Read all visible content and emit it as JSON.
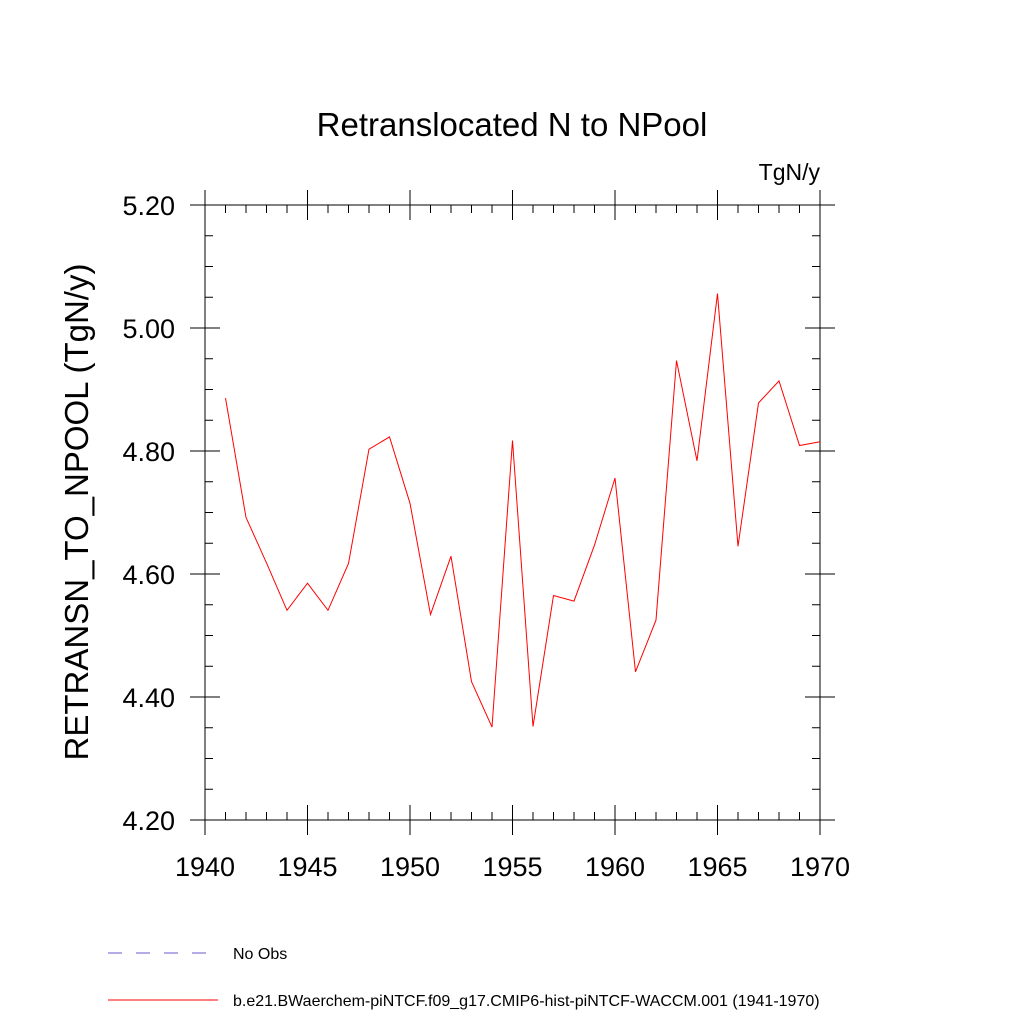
{
  "chart_data": {
    "type": "line",
    "title": "Retranslocated N to NPool",
    "units_label": "TgN/y",
    "ylabel": "RETRANSN_TO_NPOOL  (TgN/y)",
    "xlabel": "",
    "xlim": [
      1940,
      1970
    ],
    "ylim": [
      4.2,
      5.2
    ],
    "x_ticks": [
      "1940",
      "1945",
      "1950",
      "1955",
      "1960",
      "1965",
      "1970"
    ],
    "x_tick_values": [
      1940,
      1945,
      1950,
      1955,
      1960,
      1965,
      1970
    ],
    "y_ticks": [
      "4.20",
      "4.40",
      "4.60",
      "4.80",
      "5.00",
      "5.20"
    ],
    "y_tick_values": [
      4.2,
      4.4,
      4.6,
      4.8,
      5.0,
      5.2
    ],
    "x_minor_step": 1,
    "y_minor_step": 0.05,
    "grid": false,
    "legend_position": "bottom-left",
    "series": [
      {
        "name": "b.e21.BWaerchem-piNTCF.f09_g17.CMIP6-hist-piNTCF-WACCM.001 (1941-1970)",
        "color": "#ff0000",
        "dash": "solid",
        "x": [
          1941,
          1942,
          1943,
          1944,
          1945,
          1946,
          1947,
          1948,
          1949,
          1950,
          1951,
          1952,
          1953,
          1954,
          1955,
          1956,
          1957,
          1958,
          1959,
          1960,
          1961,
          1962,
          1963,
          1964,
          1965,
          1966,
          1967,
          1968,
          1969,
          1970
        ],
        "values": [
          4.886,
          4.692,
          4.618,
          4.541,
          4.585,
          4.541,
          4.617,
          4.803,
          4.823,
          4.715,
          4.534,
          4.629,
          4.425,
          4.351,
          4.817,
          4.352,
          4.565,
          4.556,
          4.647,
          4.756,
          4.441,
          4.525,
          4.947,
          4.784,
          5.056,
          4.645,
          4.878,
          4.914,
          4.809,
          4.815
        ]
      }
    ],
    "legend": [
      {
        "label": "No Obs",
        "color": "#6a5acd",
        "dash": "dashed"
      },
      {
        "label": "b.e21.BWaerchem-piNTCF.f09_g17.CMIP6-hist-piNTCF-WACCM.001 (1941-1970)",
        "color": "#ff0000",
        "dash": "solid"
      }
    ]
  }
}
